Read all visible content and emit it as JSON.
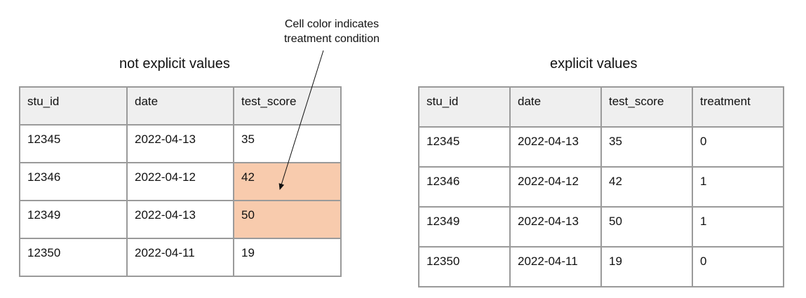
{
  "left_panel": {
    "title": "not explicit values",
    "columns": [
      "stu_id",
      "date",
      "test_score"
    ],
    "rows": [
      [
        "12345",
        "2022-04-13",
        "35"
      ],
      [
        "12346",
        "2022-04-12",
        "42"
      ],
      [
        "12349",
        "2022-04-13",
        "50"
      ],
      [
        "12350",
        "2022-04-11",
        "19"
      ]
    ],
    "highlight_color": "#f8cbad"
  },
  "annotation": {
    "text_line1": "Cell color indicates",
    "text_line2": "treatment condition"
  },
  "right_panel": {
    "title": "explicit values",
    "columns": [
      "stu_id",
      "date",
      "test_score",
      "treatment"
    ],
    "rows": [
      [
        "12345",
        "2022-04-13",
        "35",
        "0"
      ],
      [
        "12346",
        "2022-04-12",
        "42",
        "1"
      ],
      [
        "12349",
        "2022-04-13",
        "50",
        "1"
      ],
      [
        "12350",
        "2022-04-11",
        "19",
        "0"
      ]
    ]
  },
  "colors": {
    "header_bg": "#efefef",
    "border": "#9a9a9a"
  }
}
